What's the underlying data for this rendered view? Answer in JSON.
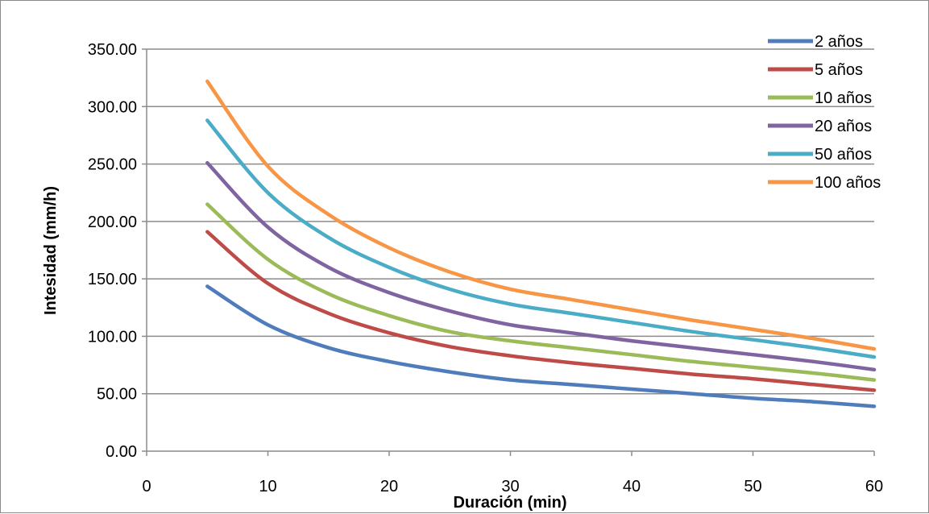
{
  "chart_data": {
    "type": "line",
    "title": "",
    "xlabel": "Duración (min)",
    "ylabel": "Intesidad (mm/h)",
    "xlim": [
      0,
      60
    ],
    "ylim": [
      0,
      350
    ],
    "xticks": [
      "0",
      "10",
      "20",
      "30",
      "40",
      "50",
      "60"
    ],
    "yticks": [
      "0.00",
      "50.00",
      "100.00",
      "150.00",
      "200.00",
      "250.00",
      "300.00",
      "350.00"
    ],
    "grid": "horizontal",
    "legend_position": "top-right",
    "x": [
      5,
      10,
      15,
      20,
      25,
      30,
      35,
      40,
      45,
      50,
      55,
      60
    ],
    "series": [
      {
        "name": "2 años",
        "color": "#4f7dbb",
        "values": [
          143.5,
          110,
          90,
          78,
          69,
          62,
          58,
          54,
          50,
          46,
          43,
          39
        ]
      },
      {
        "name": "5 años",
        "color": "#be4b48",
        "values": [
          191,
          146,
          120,
          103,
          91,
          83,
          77,
          72,
          67,
          63,
          58,
          53
        ]
      },
      {
        "name": "10 años",
        "color": "#9bbb59",
        "values": [
          215,
          167,
          137,
          118,
          104,
          96,
          90,
          84,
          78,
          73,
          68,
          62
        ]
      },
      {
        "name": "20 años",
        "color": "#7f64a1",
        "values": [
          251,
          195,
          160,
          138,
          122,
          110,
          103,
          96,
          90,
          84,
          78,
          71
        ]
      },
      {
        "name": "50 años",
        "color": "#4aacc6",
        "values": [
          288,
          225,
          186,
          160,
          141,
          128,
          120,
          112,
          104,
          97,
          90,
          82
        ]
      },
      {
        "name": "100 años",
        "color": "#f79646",
        "values": [
          322,
          248,
          206,
          177,
          156,
          141,
          132,
          123,
          114,
          106,
          98,
          89
        ]
      }
    ]
  }
}
